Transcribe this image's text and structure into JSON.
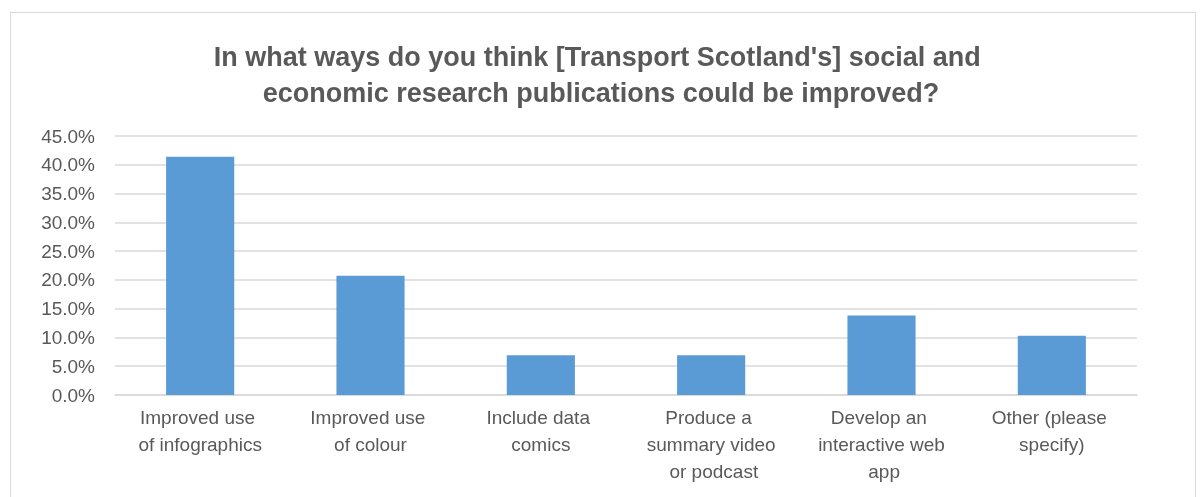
{
  "chart_data": {
    "type": "bar",
    "title": "In what ways do you think [Transport Scotland's] social and economic research publications could be improved?",
    "categories": [
      "Improved use of infographics",
      "Improved use of colour",
      "Include data comics",
      "Produce a summary video or podcast",
      "Develop an interactive web app",
      "Other (please specify)"
    ],
    "values": [
      41.4,
      20.7,
      6.9,
      6.9,
      13.8,
      10.3
    ],
    "color": "#5b9bd5",
    "ylim": [
      0,
      45
    ],
    "yticks": [
      {
        "value": 0,
        "label": "0.0%"
      },
      {
        "value": 5,
        "label": "5.0%"
      },
      {
        "value": 10,
        "label": "10.0%"
      },
      {
        "value": 15,
        "label": "15.0%"
      },
      {
        "value": 20,
        "label": "20.0%"
      },
      {
        "value": 25,
        "label": "25.0%"
      },
      {
        "value": 30,
        "label": "30.0%"
      },
      {
        "value": 35,
        "label": "35.0%"
      },
      {
        "value": 40,
        "label": "40.0%"
      },
      {
        "value": 45,
        "label": "45.0%"
      }
    ],
    "grid": "y"
  }
}
